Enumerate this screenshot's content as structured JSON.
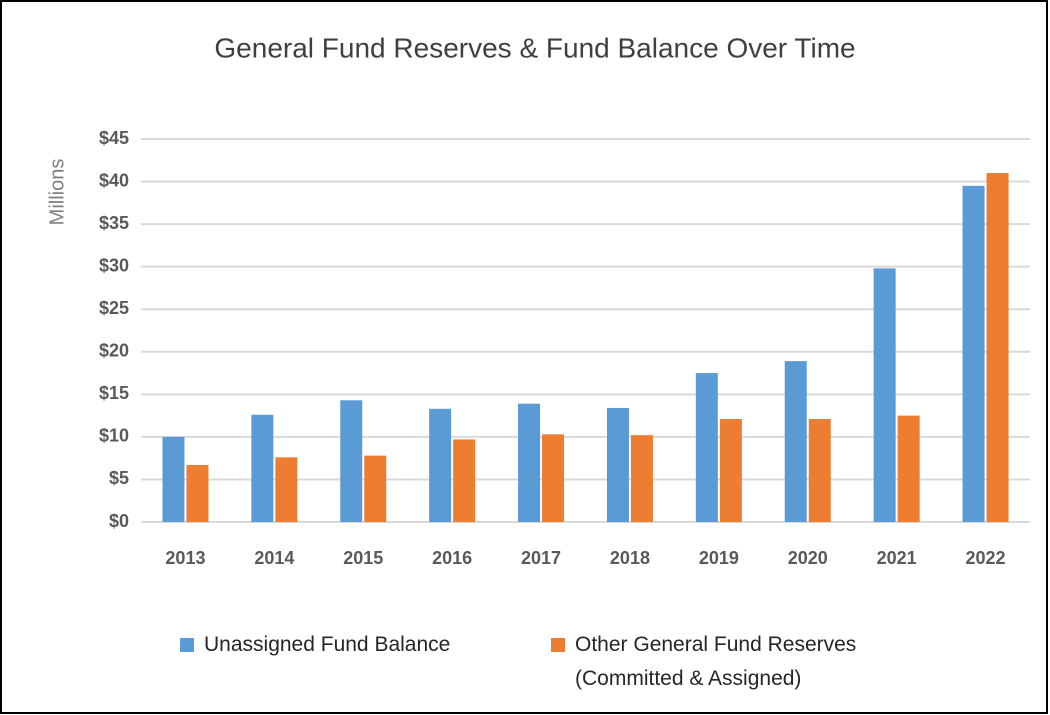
{
  "chart_data": {
    "type": "bar",
    "title": "General Fund Reserves & Fund Balance Over Time",
    "y_label": "Millions",
    "categories": [
      "2013",
      "2014",
      "2015",
      "2016",
      "2017",
      "2018",
      "2019",
      "2020",
      "2021",
      "2022"
    ],
    "series": [
      {
        "name": "Unassigned Fund Balance",
        "color": "#5b9bd5",
        "values": [
          10.0,
          12.6,
          14.3,
          13.3,
          13.9,
          13.4,
          17.5,
          18.9,
          29.8,
          39.5
        ]
      },
      {
        "name": "Other General Fund Reserves (Committed & Assigned)",
        "color": "#ed7d31",
        "values": [
          6.7,
          7.6,
          7.8,
          9.7,
          10.3,
          10.2,
          12.1,
          12.1,
          12.5,
          41.0
        ]
      }
    ],
    "ylim": [
      0,
      45
    ],
    "yticks": [
      {
        "value": 0,
        "label": "$0"
      },
      {
        "value": 5,
        "label": "$5"
      },
      {
        "value": 10,
        "label": "$10"
      },
      {
        "value": 15,
        "label": "$15"
      },
      {
        "value": 20,
        "label": "$20"
      },
      {
        "value": 25,
        "label": "$25"
      },
      {
        "value": 30,
        "label": "$30"
      },
      {
        "value": 35,
        "label": "$35"
      },
      {
        "value": 40,
        "label": "$40"
      },
      {
        "value": 45,
        "label": "$45"
      }
    ],
    "grid": true,
    "legend": "bottom"
  }
}
